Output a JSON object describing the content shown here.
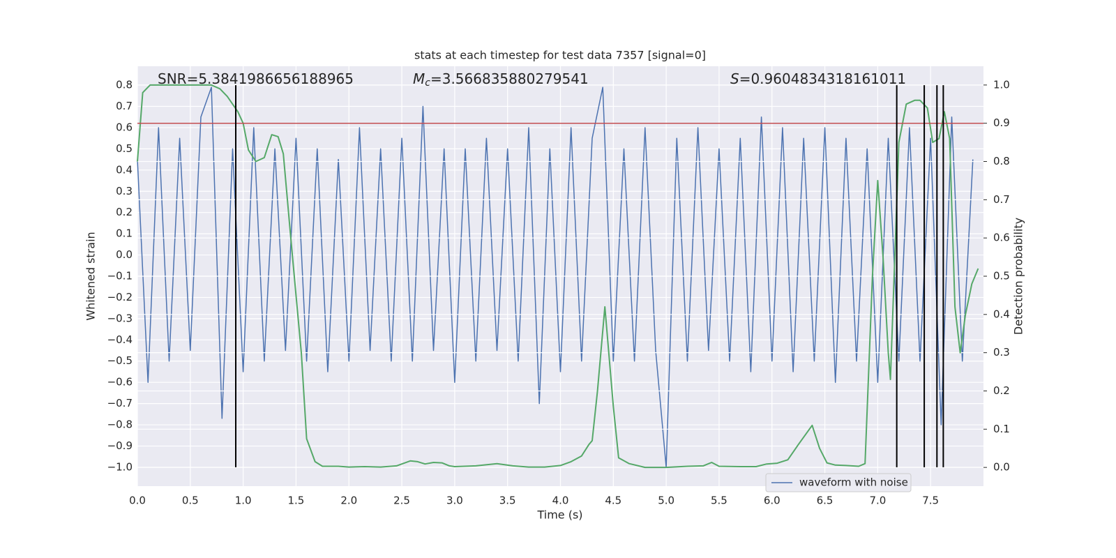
{
  "chart_data": {
    "type": "line",
    "title": "stats at each timestep for test data 7357 [signal=0]",
    "xlabel": "Time (s)",
    "ylabel": "Whitened strain",
    "y2label": "Detection probability",
    "annotations": [
      {
        "label": "SNR",
        "text": "=5.3841986656188965"
      },
      {
        "label": "M",
        "sub": "c",
        "text": "=3.566835880279541"
      },
      {
        "label": "S",
        "text": "=0.9604834318161011"
      }
    ],
    "xlim": [
      0,
      8
    ],
    "xticks": [
      {
        "value": 0,
        "label": "0.0"
      },
      0.5,
      {
        "value": 1,
        "label": "1.0"
      },
      1.5,
      {
        "value": 2,
        "label": "2.0"
      },
      2.5,
      {
        "value": 3,
        "label": "3.0"
      },
      3.5,
      {
        "value": 4,
        "label": "4.0"
      },
      4.5,
      {
        "value": 5,
        "label": "5.0"
      },
      5.5,
      {
        "value": 6,
        "label": "6.0"
      },
      6.5,
      {
        "value": 7,
        "label": "7.0"
      },
      7.5
    ],
    "ylim": [
      -1.089,
      0.889
    ],
    "yticks": [
      0.8,
      0.7,
      0.6,
      0.5,
      0.4,
      0.3,
      0.2,
      0.1,
      {
        "value": 0,
        "label": "0.0"
      },
      {
        "value": -0.1,
        "label": "−0.1"
      },
      {
        "value": -0.2,
        "label": "−0.2"
      },
      {
        "value": -0.3,
        "label": "−0.3"
      },
      {
        "value": -0.4,
        "label": "−0.4"
      },
      {
        "value": -0.5,
        "label": "−0.5"
      },
      {
        "value": -0.6,
        "label": "−0.6"
      },
      {
        "value": -0.7,
        "label": "−0.7"
      },
      {
        "value": -0.8,
        "label": "−0.8"
      },
      {
        "value": -0.9,
        "label": "−0.9"
      },
      {
        "value": -1,
        "label": "−1.0"
      }
    ],
    "y2lim": [
      -0.049,
      1.049
    ],
    "y2ticks": [
      {
        "value": 1,
        "label": "1.0"
      },
      0.9,
      0.8,
      0.7,
      0.6,
      0.5,
      0.4,
      0.3,
      0.2,
      0.1,
      {
        "value": 0,
        "label": "0.0"
      }
    ],
    "grid": true,
    "legend": "lower right",
    "series": [
      {
        "name": "waveform with noise",
        "color": "#4c72b0",
        "axis": "y",
        "x": [
          0.0,
          0.1,
          0.2,
          0.3,
          0.4,
          0.5,
          0.6,
          0.7,
          0.8,
          0.9,
          1.0,
          1.1,
          1.2,
          1.3,
          1.4,
          1.5,
          1.6,
          1.7,
          1.8,
          1.9,
          2.0,
          2.1,
          2.2,
          2.3,
          2.4,
          2.5,
          2.6,
          2.7,
          2.8,
          2.9,
          3.0,
          3.1,
          3.2,
          3.3,
          3.4,
          3.5,
          3.6,
          3.7,
          3.8,
          3.9,
          4.0,
          4.1,
          4.2,
          4.3,
          4.4,
          4.5,
          4.6,
          4.7,
          4.8,
          4.9,
          5.0,
          5.1,
          5.2,
          5.3,
          5.4,
          5.5,
          5.6,
          5.7,
          5.8,
          5.9,
          6.0,
          6.1,
          6.2,
          6.3,
          6.4,
          6.5,
          6.6,
          6.7,
          6.8,
          6.9,
          7.0,
          7.1,
          7.2,
          7.3,
          7.4,
          7.5,
          7.6,
          7.7,
          7.8,
          7.9
        ],
        "values": [
          0.45,
          -0.6,
          0.6,
          -0.5,
          0.55,
          -0.45,
          0.65,
          0.79,
          -0.77,
          0.5,
          -0.55,
          0.6,
          -0.5,
          0.5,
          -0.45,
          0.55,
          -0.5,
          0.5,
          -0.55,
          0.45,
          -0.5,
          0.6,
          -0.45,
          0.5,
          -0.5,
          0.55,
          -0.5,
          0.7,
          -0.45,
          0.5,
          -0.6,
          0.5,
          -0.5,
          0.55,
          -0.45,
          0.5,
          -0.5,
          0.6,
          -0.7,
          0.5,
          -0.55,
          0.6,
          -0.5,
          0.55,
          0.79,
          -0.5,
          0.5,
          -0.5,
          0.6,
          -0.45,
          -1.0,
          0.55,
          -0.5,
          0.6,
          -0.45,
          0.5,
          -0.5,
          0.55,
          -0.55,
          0.65,
          -0.5,
          0.6,
          -0.55,
          0.55,
          -0.5,
          0.6,
          -0.6,
          0.55,
          -0.5,
          0.5,
          -0.6,
          0.55,
          -0.5,
          0.6,
          -0.5,
          0.55,
          -0.8,
          0.65,
          -0.5,
          0.45
        ]
      },
      {
        "color": "#55a868",
        "axis": "y2",
        "x": [
          0.0,
          0.05,
          0.12,
          0.3,
          0.5,
          0.7,
          0.78,
          0.85,
          0.9,
          0.95,
          1.0,
          1.05,
          1.12,
          1.2,
          1.27,
          1.33,
          1.38,
          1.45,
          1.5,
          1.55,
          1.6,
          1.68,
          1.75,
          1.9,
          2.0,
          2.15,
          2.3,
          2.45,
          2.58,
          2.65,
          2.72,
          2.8,
          2.88,
          2.95,
          3.0,
          3.2,
          3.4,
          3.55,
          3.7,
          3.85,
          4.0,
          4.1,
          4.2,
          4.27,
          4.3,
          4.35,
          4.42,
          4.5,
          4.55,
          4.65,
          4.8,
          5.0,
          5.2,
          5.35,
          5.43,
          5.5,
          5.7,
          5.85,
          5.95,
          6.05,
          6.15,
          6.25,
          6.38,
          6.45,
          6.52,
          6.6,
          6.7,
          6.82,
          6.88,
          6.95,
          7.0,
          7.05,
          7.1,
          7.12,
          7.2,
          7.27,
          7.35,
          7.4,
          7.47,
          7.52,
          7.58,
          7.63,
          7.68,
          7.73,
          7.78,
          7.83,
          7.89,
          7.95
        ],
        "values": [
          0.8,
          0.98,
          1.0,
          1.0,
          1.0,
          1.0,
          0.99,
          0.97,
          0.95,
          0.93,
          0.9,
          0.83,
          0.8,
          0.81,
          0.87,
          0.865,
          0.82,
          0.6,
          0.45,
          0.3,
          0.075,
          0.015,
          0.003,
          0.003,
          0.001,
          0.002,
          0.001,
          0.004,
          0.017,
          0.015,
          0.009,
          0.013,
          0.012,
          0.004,
          0.002,
          0.004,
          0.01,
          0.004,
          0.001,
          0.001,
          0.005,
          0.015,
          0.03,
          0.06,
          0.07,
          0.2,
          0.42,
          0.16,
          0.025,
          0.01,
          0.0,
          0.0,
          0.003,
          0.004,
          0.013,
          0.003,
          0.002,
          0.002,
          0.009,
          0.011,
          0.02,
          0.06,
          0.11,
          0.05,
          0.012,
          0.006,
          0.005,
          0.003,
          0.01,
          0.5,
          0.75,
          0.55,
          0.3,
          0.23,
          0.85,
          0.95,
          0.96,
          0.96,
          0.94,
          0.85,
          0.86,
          0.93,
          0.86,
          0.42,
          0.3,
          0.4,
          0.48,
          0.52
        ]
      }
    ],
    "hline": {
      "y2": 0.9,
      "color": "#c44e52"
    },
    "vlines": {
      "x": [
        0.93,
        7.18,
        7.44,
        7.56,
        7.62
      ],
      "ymin": -1.0,
      "ymax": 0.8,
      "color": "#000000"
    }
  }
}
